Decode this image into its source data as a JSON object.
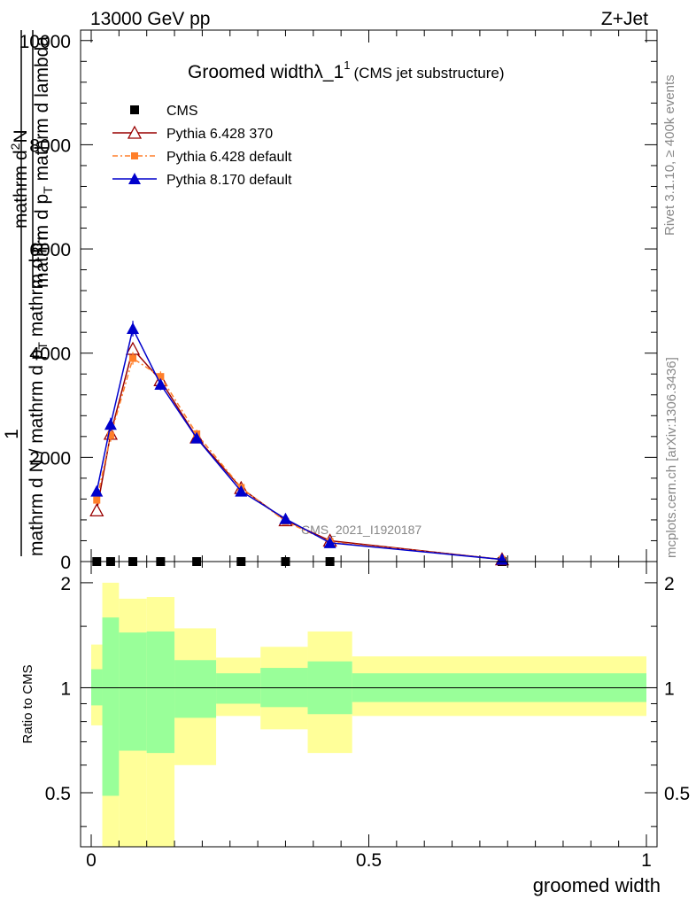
{
  "header": {
    "left": "13000 GeV pp",
    "right": "Z+Jet"
  },
  "side_text": {
    "rivet": "Rivet 3.1.10, ≥ 400k events",
    "mcplots": "mcplots.cern.ch [arXiv:1306.3436]"
  },
  "colors": {
    "cms": "#000000",
    "pythia6_370": "#990000",
    "pythia6_default": "#ff7f2a",
    "pythia8_default": "#0000cc",
    "band_inner": "#99ff99",
    "band_outer": "#ffff99"
  },
  "chart_data": [
    {
      "type": "line",
      "title_main": "Groomed widthλ_1",
      "title_sup": "1",
      "title_sub": "(CMS jet substructure)",
      "watermark": "CMS_2021_I1920187",
      "ylabel_numer_a": "mathrm d",
      "ylabel_numer_b": "2",
      "ylabel_numer_c": "N",
      "ylabel_denom_a": "mathrm d p",
      "ylabel_denom_b": "T",
      "ylabel_denom_c": " mathrm d lambda",
      "ylabel_one": "1",
      "ylabel_long_a": "mathrm d N / mathrm d p",
      "ylabel_long_b": "T",
      "ylabel_long_c": " mathrm d p",
      "ylabel_long_d": "T",
      "xlim": [
        0,
        1
      ],
      "ylim": [
        0,
        10200
      ],
      "yticks": [
        0,
        2000,
        4000,
        6000,
        8000,
        10000
      ],
      "ytick_labels": [
        "0",
        "2000",
        "4000",
        "6000",
        "8000",
        "10000"
      ],
      "legend_position": "top-left",
      "series": [
        {
          "name": "CMS",
          "marker": "square",
          "x": [
            0.01,
            0.035,
            0.075,
            0.125,
            0.19,
            0.27,
            0.35,
            0.43,
            0.74
          ],
          "y": [
            0,
            0,
            0,
            0,
            0,
            0,
            0,
            0,
            0
          ]
        },
        {
          "name": "Pythia 6.428 370",
          "marker": "triangle-open",
          "x": [
            0.01,
            0.035,
            0.075,
            0.125,
            0.19,
            0.27,
            0.35,
            0.43,
            0.74
          ],
          "y": [
            980,
            2450,
            4080,
            3480,
            2380,
            1410,
            790,
            400,
            40
          ],
          "err": [
            60,
            120,
            120,
            100,
            80,
            60,
            40,
            30,
            10
          ]
        },
        {
          "name": "Pythia 6.428 default",
          "marker": "square-small",
          "x": [
            0.01,
            0.035,
            0.075,
            0.125,
            0.19,
            0.27,
            0.35,
            0.43,
            0.74
          ],
          "y": [
            1180,
            2420,
            3900,
            3550,
            2450,
            1420,
            770,
            380,
            40
          ],
          "err": [
            60,
            120,
            120,
            100,
            80,
            60,
            40,
            30,
            10
          ]
        },
        {
          "name": "Pythia 8.170 default",
          "marker": "triangle-filled",
          "x": [
            0.01,
            0.035,
            0.075,
            0.125,
            0.19,
            0.27,
            0.35,
            0.43,
            0.74
          ],
          "y": [
            1350,
            2630,
            4470,
            3400,
            2370,
            1350,
            820,
            360,
            40
          ],
          "err": [
            80,
            130,
            150,
            110,
            80,
            60,
            40,
            30,
            10
          ]
        }
      ]
    },
    {
      "type": "area",
      "ylabel": "Ratio to CMS",
      "xlabel": "groomed width",
      "xlim": [
        0,
        1
      ],
      "ylim": [
        0.35,
        2.3
      ],
      "log_y": true,
      "yticks": [
        0.5,
        1,
        2
      ],
      "ytick_labels": [
        "0.5",
        "1",
        "2"
      ],
      "xticks": [
        0,
        0.5,
        1
      ],
      "xtick_labels": [
        "0",
        "0.5",
        "1"
      ],
      "bins": [
        {
          "x0": 0.0,
          "x1": 0.02,
          "inner": [
            0.89,
            1.13
          ],
          "outer": [
            0.78,
            1.33
          ]
        },
        {
          "x0": 0.02,
          "x1": 0.05,
          "inner": [
            0.49,
            1.59
          ],
          "outer": [
            0.3,
            2.0
          ]
        },
        {
          "x0": 0.05,
          "x1": 0.1,
          "inner": [
            0.66,
            1.44
          ],
          "outer": [
            0.3,
            1.8
          ]
        },
        {
          "x0": 0.1,
          "x1": 0.15,
          "inner": [
            0.65,
            1.45
          ],
          "outer": [
            0.3,
            1.82
          ]
        },
        {
          "x0": 0.15,
          "x1": 0.225,
          "inner": [
            0.82,
            1.2
          ],
          "outer": [
            0.6,
            1.48
          ]
        },
        {
          "x0": 0.225,
          "x1": 0.305,
          "inner": [
            0.9,
            1.1
          ],
          "outer": [
            0.83,
            1.22
          ]
        },
        {
          "x0": 0.305,
          "x1": 0.39,
          "inner": [
            0.88,
            1.14
          ],
          "outer": [
            0.76,
            1.31
          ]
        },
        {
          "x0": 0.39,
          "x1": 0.47,
          "inner": [
            0.84,
            1.19
          ],
          "outer": [
            0.65,
            1.45
          ]
        },
        {
          "x0": 0.47,
          "x1": 1.0,
          "inner": [
            0.91,
            1.1
          ],
          "outer": [
            0.83,
            1.23
          ]
        }
      ]
    }
  ]
}
